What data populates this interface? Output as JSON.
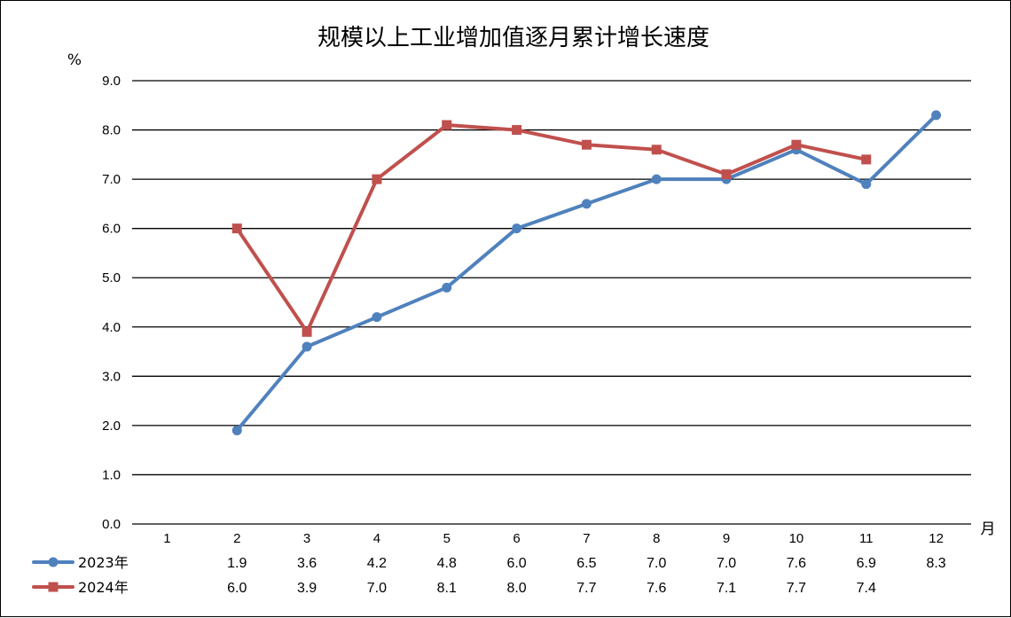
{
  "chart_data": {
    "type": "line",
    "title": "规模以上工业增加值逐月累计增长速度",
    "y_unit": "%",
    "x_unit": "月",
    "categories": [
      "1",
      "2",
      "3",
      "4",
      "5",
      "6",
      "7",
      "8",
      "9",
      "10",
      "11",
      "12"
    ],
    "ylim": [
      0,
      9
    ],
    "yticks": [
      "0.0",
      "1.0",
      "2.0",
      "3.0",
      "4.0",
      "5.0",
      "6.0",
      "7.0",
      "8.0",
      "9.0"
    ],
    "grid": true,
    "legend_position": "bottom-left (data table)",
    "series": [
      {
        "name": "2023年",
        "color": "#4F81BD",
        "marker": "circle",
        "values": [
          null,
          1.9,
          3.6,
          4.2,
          4.8,
          6.0,
          6.5,
          7.0,
          7.0,
          7.6,
          6.9,
          8.3
        ],
        "labels": [
          "",
          "1.9",
          "3.6",
          "4.2",
          "4.8",
          "6.0",
          "6.5",
          "7.0",
          "7.0",
          "7.6",
          "6.9",
          "8.3"
        ]
      },
      {
        "name": "2024年",
        "color": "#C0504D",
        "marker": "square",
        "values": [
          null,
          6.0,
          3.9,
          7.0,
          8.1,
          8.0,
          7.7,
          7.6,
          7.1,
          7.7,
          7.4,
          null
        ],
        "labels": [
          "",
          "6.0",
          "3.9",
          "7.0",
          "8.1",
          "8.0",
          "7.7",
          "7.6",
          "7.1",
          "7.7",
          "7.4",
          ""
        ]
      }
    ]
  }
}
